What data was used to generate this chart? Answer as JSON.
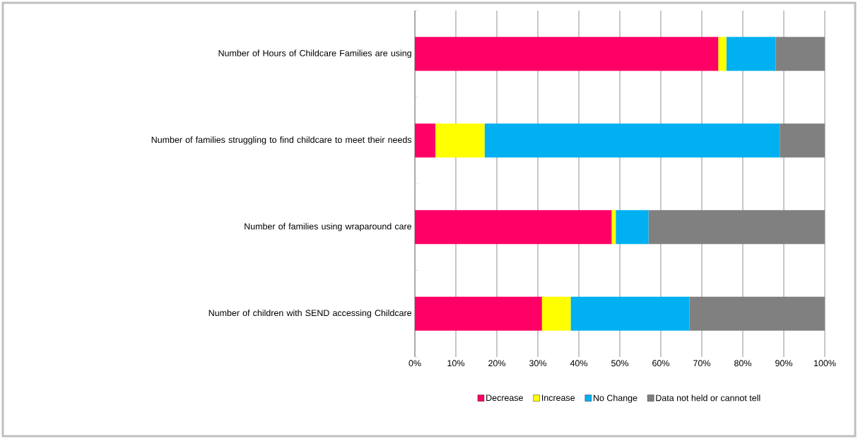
{
  "chart_data": {
    "type": "bar",
    "orientation": "horizontal",
    "stacked": true,
    "categories": [
      "Number of Hours of Childcare Families are using",
      "Number of families struggling to find childcare to meet their needs",
      "Number of families using wraparound care",
      "Number of children with SEND accessing Childcare"
    ],
    "series": [
      {
        "name": "Decrease",
        "color": "#ff0066",
        "values": [
          74,
          5,
          48,
          31
        ]
      },
      {
        "name": "Increase",
        "color": "#ffff00",
        "values": [
          2,
          12,
          1,
          7
        ]
      },
      {
        "name": "No Change",
        "color": "#00b0f0",
        "values": [
          12,
          72,
          8,
          29
        ]
      },
      {
        "name": "Data not held or cannot tell",
        "color": "#808080",
        "values": [
          12,
          11,
          43,
          33
        ]
      }
    ],
    "xlim": [
      0,
      100
    ],
    "xticks": [
      {
        "value": 0,
        "label": "0%"
      },
      {
        "value": 10,
        "label": "10%"
      },
      {
        "value": 20,
        "label": "20%"
      },
      {
        "value": 30,
        "label": "30%"
      },
      {
        "value": 40,
        "label": "40%"
      },
      {
        "value": 50,
        "label": "50%"
      },
      {
        "value": 60,
        "label": "60%"
      },
      {
        "value": 70,
        "label": "70%"
      },
      {
        "value": 80,
        "label": "80%"
      },
      {
        "value": 90,
        "label": "90%"
      },
      {
        "value": 100,
        "label": "100%"
      }
    ],
    "grid": "x",
    "legend": "bottom"
  }
}
